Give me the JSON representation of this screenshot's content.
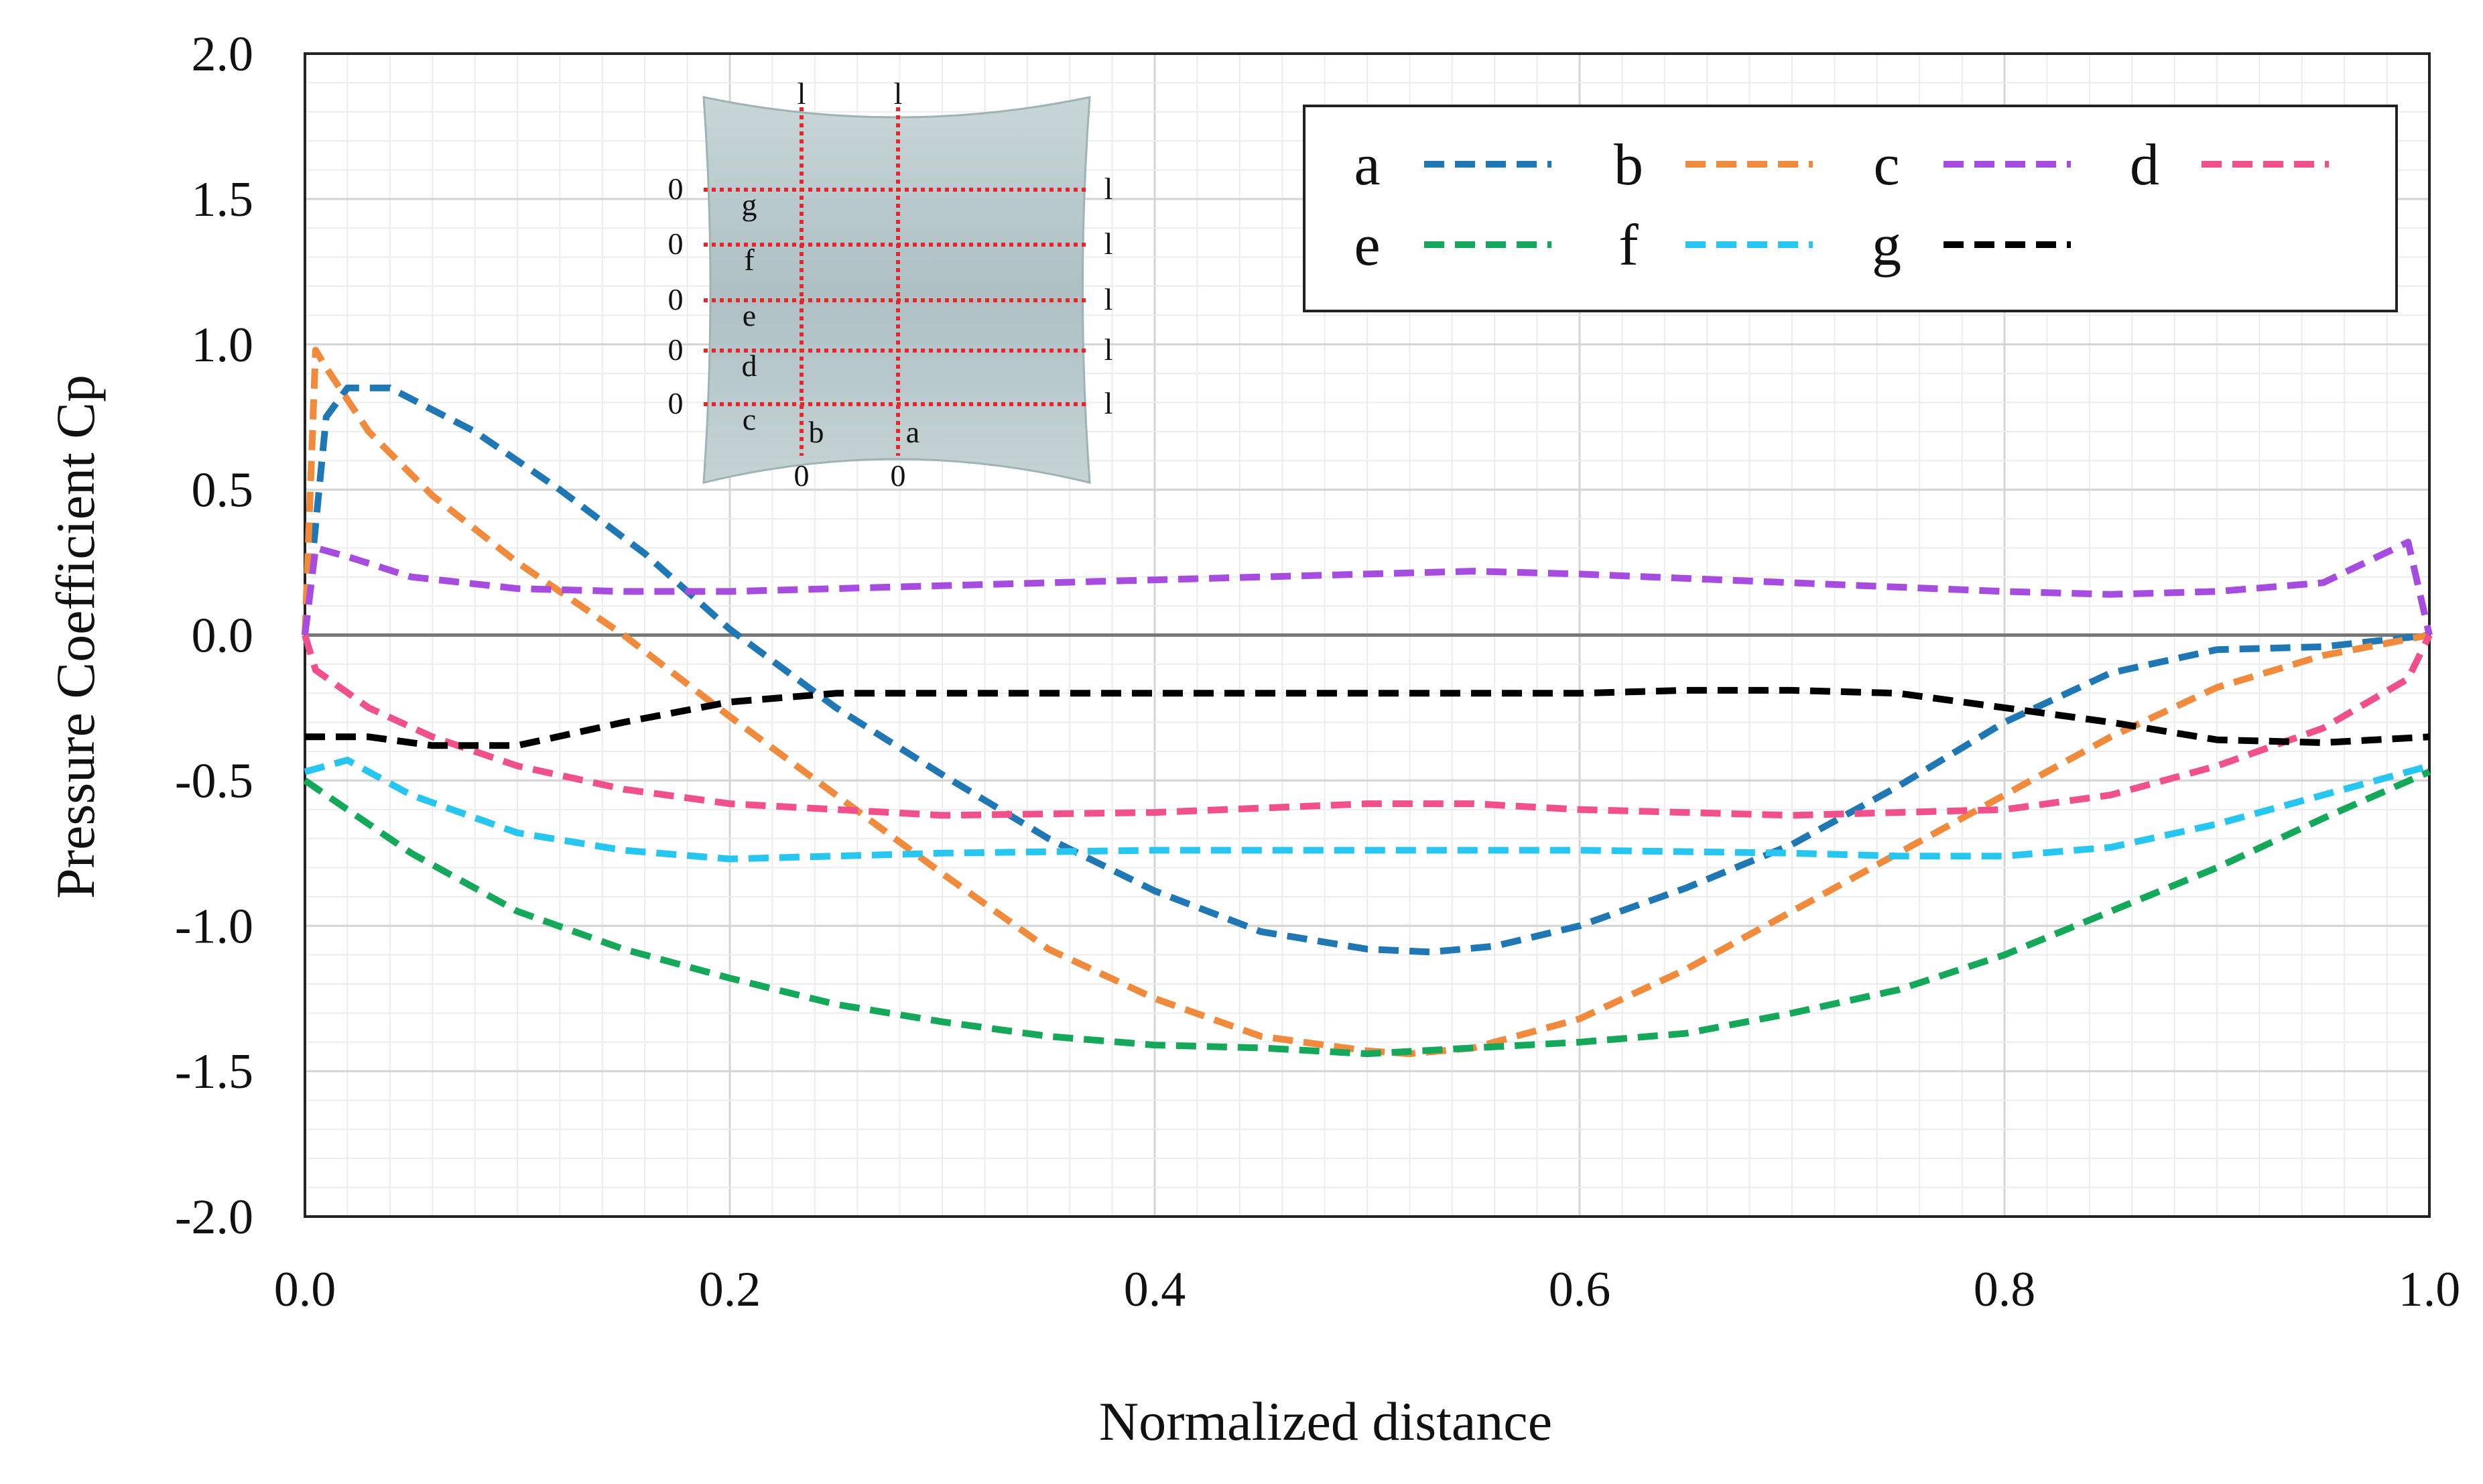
{
  "chart_data": {
    "type": "line",
    "title": "",
    "xlabel": "Normalized distance",
    "ylabel": "Pressure Coefficient Cp",
    "xlim": [
      0.0,
      1.0
    ],
    "ylim": [
      -2.0,
      2.0
    ],
    "x_ticks": [
      0.0,
      0.2,
      0.4,
      0.6,
      0.8,
      1.0
    ],
    "x_tick_labels": [
      "0.0",
      "0.2",
      "0.4",
      "0.6",
      "0.8",
      "1.0"
    ],
    "y_ticks": [
      2.0,
      1.5,
      1.0,
      0.5,
      0.0,
      -0.5,
      -1.0,
      -1.5,
      -2.0
    ],
    "y_tick_labels": [
      "2.0",
      "1.5",
      "1.0",
      "0.5",
      "0.0",
      "-0.5",
      "-1.0",
      "-1.5",
      "-2.0"
    ],
    "grid": true,
    "zero_line": true,
    "legend_position": "top-right",
    "series": [
      {
        "name": "a",
        "color": "#1f77b4",
        "x": [
          0.0,
          0.01,
          0.02,
          0.04,
          0.08,
          0.12,
          0.16,
          0.2,
          0.25,
          0.3,
          0.35,
          0.4,
          0.45,
          0.5,
          0.53,
          0.56,
          0.6,
          0.65,
          0.7,
          0.75,
          0.8,
          0.85,
          0.9,
          0.95,
          1.0
        ],
        "values": [
          0.0,
          0.75,
          0.85,
          0.85,
          0.7,
          0.5,
          0.28,
          0.02,
          -0.25,
          -0.48,
          -0.7,
          -0.88,
          -1.02,
          -1.08,
          -1.09,
          -1.07,
          -1.0,
          -0.87,
          -0.72,
          -0.52,
          -0.3,
          -0.13,
          -0.05,
          -0.04,
          0.0
        ]
      },
      {
        "name": "b",
        "color": "#f08a3c",
        "x": [
          0.0,
          0.005,
          0.01,
          0.03,
          0.06,
          0.1,
          0.15,
          0.2,
          0.25,
          0.3,
          0.35,
          0.4,
          0.45,
          0.5,
          0.52,
          0.55,
          0.6,
          0.65,
          0.7,
          0.75,
          0.8,
          0.85,
          0.9,
          0.95,
          1.0
        ],
        "values": [
          0.0,
          0.98,
          0.92,
          0.7,
          0.48,
          0.25,
          0.0,
          -0.28,
          -0.55,
          -0.82,
          -1.08,
          -1.25,
          -1.38,
          -1.43,
          -1.44,
          -1.42,
          -1.32,
          -1.15,
          -0.95,
          -0.75,
          -0.55,
          -0.35,
          -0.18,
          -0.07,
          0.0
        ]
      },
      {
        "name": "c",
        "color": "#a64de0",
        "x": [
          0.0,
          0.005,
          0.02,
          0.05,
          0.1,
          0.15,
          0.2,
          0.3,
          0.4,
          0.5,
          0.55,
          0.6,
          0.7,
          0.8,
          0.85,
          0.9,
          0.95,
          0.99,
          1.0
        ],
        "values": [
          0.0,
          0.3,
          0.27,
          0.2,
          0.16,
          0.15,
          0.15,
          0.17,
          0.19,
          0.21,
          0.22,
          0.21,
          0.18,
          0.15,
          0.14,
          0.15,
          0.18,
          0.32,
          0.0
        ]
      },
      {
        "name": "d",
        "color": "#f0508c",
        "x": [
          0.0,
          0.005,
          0.03,
          0.06,
          0.1,
          0.15,
          0.2,
          0.3,
          0.4,
          0.5,
          0.55,
          0.6,
          0.7,
          0.8,
          0.85,
          0.9,
          0.95,
          0.99,
          1.0
        ],
        "values": [
          0.0,
          -0.12,
          -0.25,
          -0.35,
          -0.45,
          -0.53,
          -0.58,
          -0.62,
          -0.61,
          -0.58,
          -0.58,
          -0.6,
          -0.62,
          -0.6,
          -0.55,
          -0.45,
          -0.32,
          -0.15,
          0.0
        ]
      },
      {
        "name": "e",
        "color": "#16a85a",
        "x": [
          0.0,
          0.02,
          0.05,
          0.1,
          0.15,
          0.2,
          0.25,
          0.3,
          0.35,
          0.4,
          0.45,
          0.5,
          0.55,
          0.6,
          0.65,
          0.7,
          0.75,
          0.8,
          0.85,
          0.9,
          0.95,
          1.0
        ],
        "values": [
          -0.5,
          -0.6,
          -0.75,
          -0.95,
          -1.08,
          -1.18,
          -1.27,
          -1.33,
          -1.38,
          -1.41,
          -1.42,
          -1.44,
          -1.42,
          -1.4,
          -1.37,
          -1.3,
          -1.22,
          -1.1,
          -0.95,
          -0.8,
          -0.63,
          -0.47
        ]
      },
      {
        "name": "f",
        "color": "#27c6f0",
        "x": [
          0.0,
          0.02,
          0.05,
          0.1,
          0.15,
          0.2,
          0.25,
          0.3,
          0.4,
          0.5,
          0.6,
          0.7,
          0.75,
          0.8,
          0.85,
          0.9,
          0.95,
          1.0
        ],
        "values": [
          -0.47,
          -0.43,
          -0.55,
          -0.68,
          -0.74,
          -0.77,
          -0.76,
          -0.75,
          -0.74,
          -0.74,
          -0.74,
          -0.75,
          -0.76,
          -0.76,
          -0.73,
          -0.65,
          -0.55,
          -0.45
        ]
      },
      {
        "name": "g",
        "color": "#000000",
        "x": [
          0.0,
          0.03,
          0.06,
          0.1,
          0.15,
          0.2,
          0.25,
          0.3,
          0.4,
          0.5,
          0.6,
          0.65,
          0.7,
          0.75,
          0.8,
          0.85,
          0.9,
          0.95,
          1.0
        ],
        "values": [
          -0.35,
          -0.35,
          -0.38,
          -0.38,
          -0.3,
          -0.23,
          -0.2,
          -0.2,
          -0.2,
          -0.2,
          -0.2,
          -0.19,
          -0.19,
          -0.2,
          -0.25,
          -0.3,
          -0.36,
          -0.37,
          -0.35
        ]
      }
    ],
    "inset": {
      "description_labels": [
        "g",
        "f",
        "e",
        "d",
        "c",
        "b",
        "a"
      ],
      "row_labels": [
        "g",
        "f",
        "e",
        "d",
        "c"
      ],
      "column_labels": [
        "b",
        "a"
      ],
      "start_marker": "0",
      "end_marker": "l"
    }
  }
}
